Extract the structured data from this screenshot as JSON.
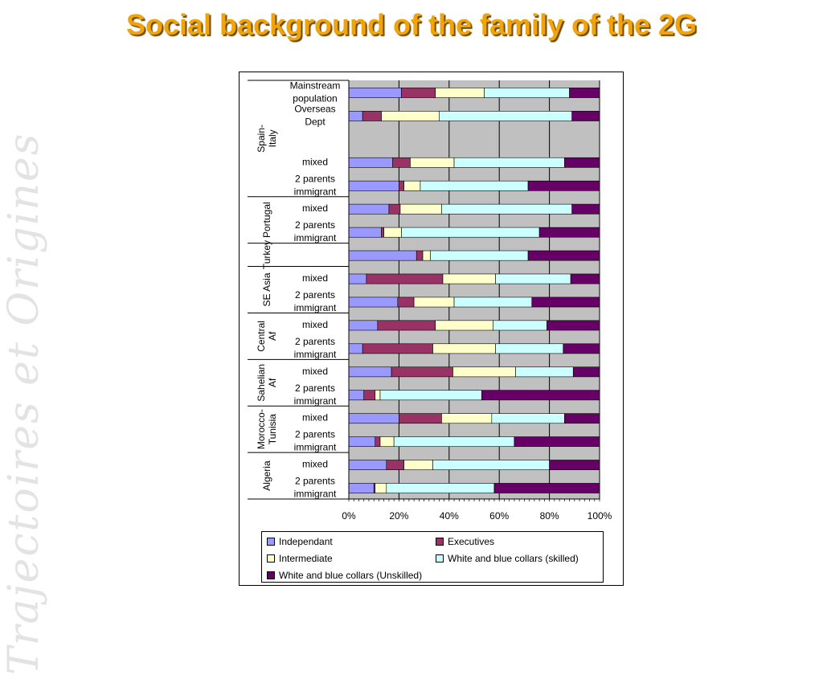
{
  "slide": {
    "title": "Social background of the family of the 2G",
    "watermark": "Trajectoires et Origines"
  },
  "chart_data": {
    "type": "bar",
    "orientation": "horizontal",
    "stacked": "percent",
    "xlim": [
      0,
      100
    ],
    "x_ticks": [
      "0%",
      "20%",
      "40%",
      "60%",
      "80%",
      "100%"
    ],
    "grid": true,
    "legend_position": "bottom",
    "groups": [
      {
        "name": "Spain-Italy",
        "rows": [
          {
            "label": "Mainstream population",
            "values": [
              21,
              13.5,
              19.5,
              34,
              12
            ]
          },
          {
            "label": "Overseas Dept",
            "values": [
              5.5,
              7.5,
              23,
              53,
              11
            ]
          },
          {
            "label": "",
            "values": null
          },
          {
            "label": "mixed",
            "values": [
              17.5,
              7,
              17.5,
              44,
              14
            ]
          },
          {
            "label": "2 parents immigrant",
            "values": [
              20,
              2,
              6.5,
              43,
              28.5
            ]
          }
        ]
      },
      {
        "name": "Portugal",
        "rows": [
          {
            "label": "mixed",
            "values": [
              16,
              4.5,
              16.5,
              52,
              11
            ]
          },
          {
            "label": "2 parents immigrant",
            "values": [
              13,
              1,
              7,
              55,
              24
            ]
          }
        ]
      },
      {
        "name": "Turkey",
        "rows": [
          {
            "label": "",
            "values": [
              27,
              2.5,
              3,
              39,
              28.5
            ]
          }
        ]
      },
      {
        "name": "SE Asia",
        "rows": [
          {
            "label": "mixed",
            "values": [
              7,
              30.5,
              21,
              30,
              11.5
            ]
          },
          {
            "label": "2 parents immigrant",
            "values": [
              19.5,
              6.5,
              16,
              31,
              27
            ]
          }
        ]
      },
      {
        "name": "Central Af",
        "rows": [
          {
            "label": "mixed",
            "values": [
              11.5,
              23,
              23,
              21.5,
              21
            ]
          },
          {
            "label": "2 parents immigrant",
            "values": [
              5.5,
              28,
              25,
              27,
              14.5
            ]
          }
        ]
      },
      {
        "name": "Sahelian Af",
        "rows": [
          {
            "label": "mixed",
            "values": [
              17,
              24.5,
              25,
              23,
              10.5
            ]
          },
          {
            "label": "2 parents immigrant",
            "values": [
              6,
              4.5,
              2,
              40.5,
              47
            ]
          }
        ]
      },
      {
        "name": "Morocco-Tunisia",
        "rows": [
          {
            "label": "mixed",
            "values": [
              20,
              17,
              20,
              29,
              14
            ]
          },
          {
            "label": "2 parents immigrant",
            "values": [
              10.5,
              2,
              5.5,
              48,
              34
            ]
          }
        ]
      },
      {
        "name": "Algeria",
        "rows": [
          {
            "label": "mixed",
            "values": [
              15,
              7,
              11.5,
              46.5,
              20
            ]
          },
          {
            "label": "2 parents immigrant",
            "values": [
              10,
              0.5,
              4.5,
              43,
              42
            ]
          }
        ]
      }
    ],
    "series": [
      {
        "name": "Independant",
        "color": "#9999ff"
      },
      {
        "name": "Executives",
        "color": "#993366"
      },
      {
        "name": "Intermediate",
        "color": "#ffffcc"
      },
      {
        "name": "White and blue collars (skilled)",
        "color": "#ccffff"
      },
      {
        "name": "White and blue collars (Unskilled)",
        "color": "#660066"
      }
    ],
    "plot_background": "#c0c0c0"
  }
}
